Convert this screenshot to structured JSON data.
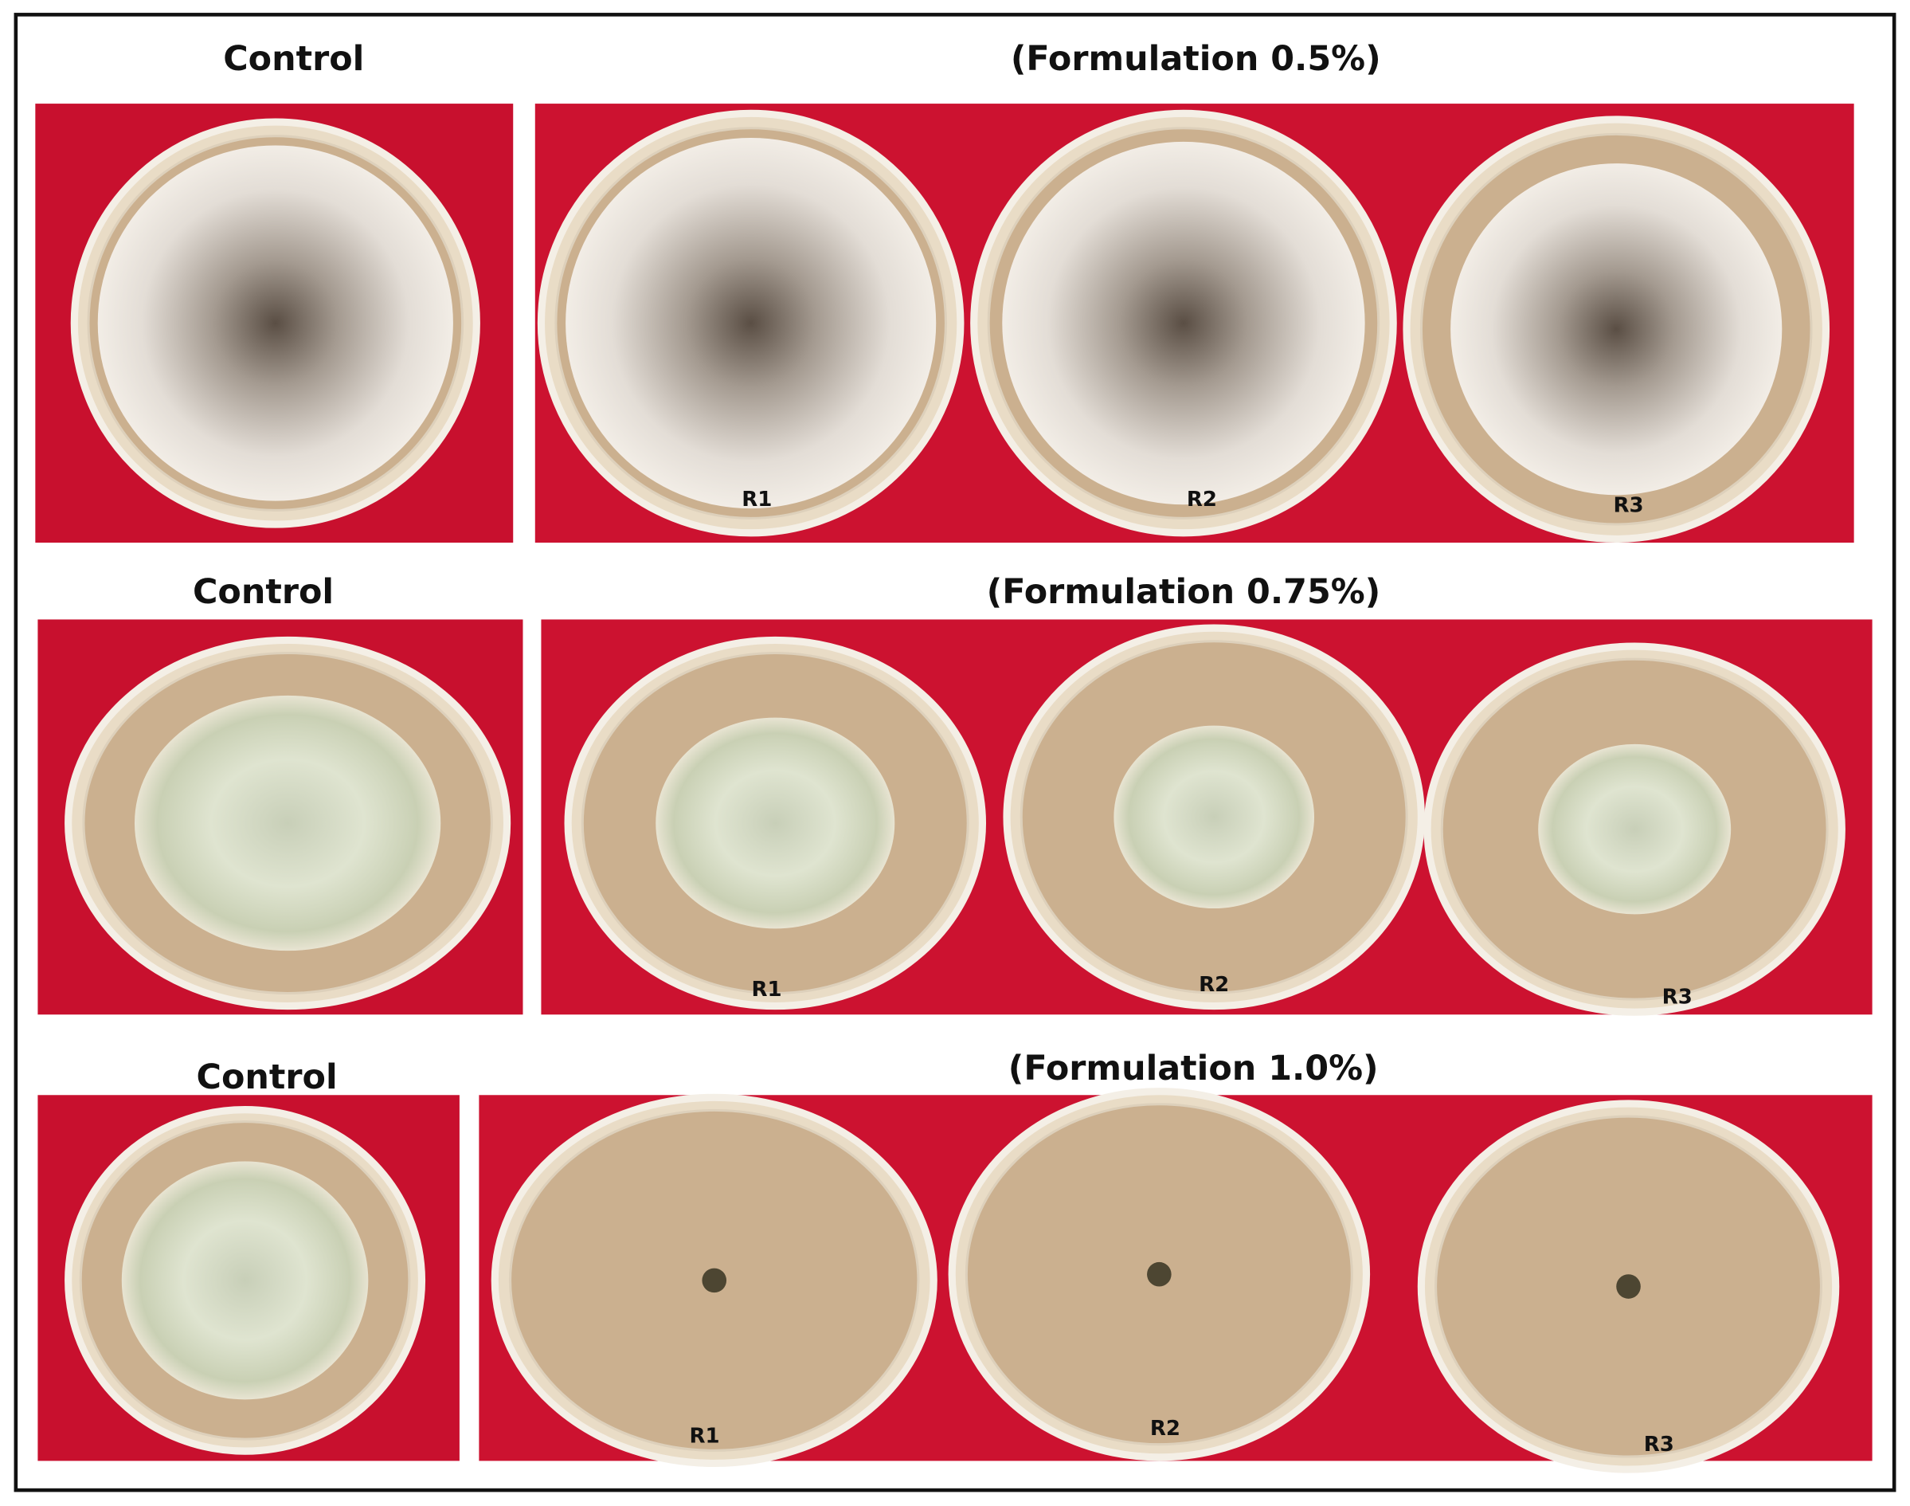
{
  "rows": [
    {
      "control": "Control",
      "formulation": "(Formulation 0.5%)",
      "replicates": [
        "R1",
        "R2",
        "R3"
      ]
    },
    {
      "control": "Control",
      "formulation": "(Formulation 0.75%)",
      "replicates": [
        "R1",
        "R2",
        "R3"
      ]
    },
    {
      "control": "Control",
      "formulation": "(Formulation 1.0%)",
      "replicates": [
        "R1",
        "R2",
        "R3"
      ]
    }
  ]
}
